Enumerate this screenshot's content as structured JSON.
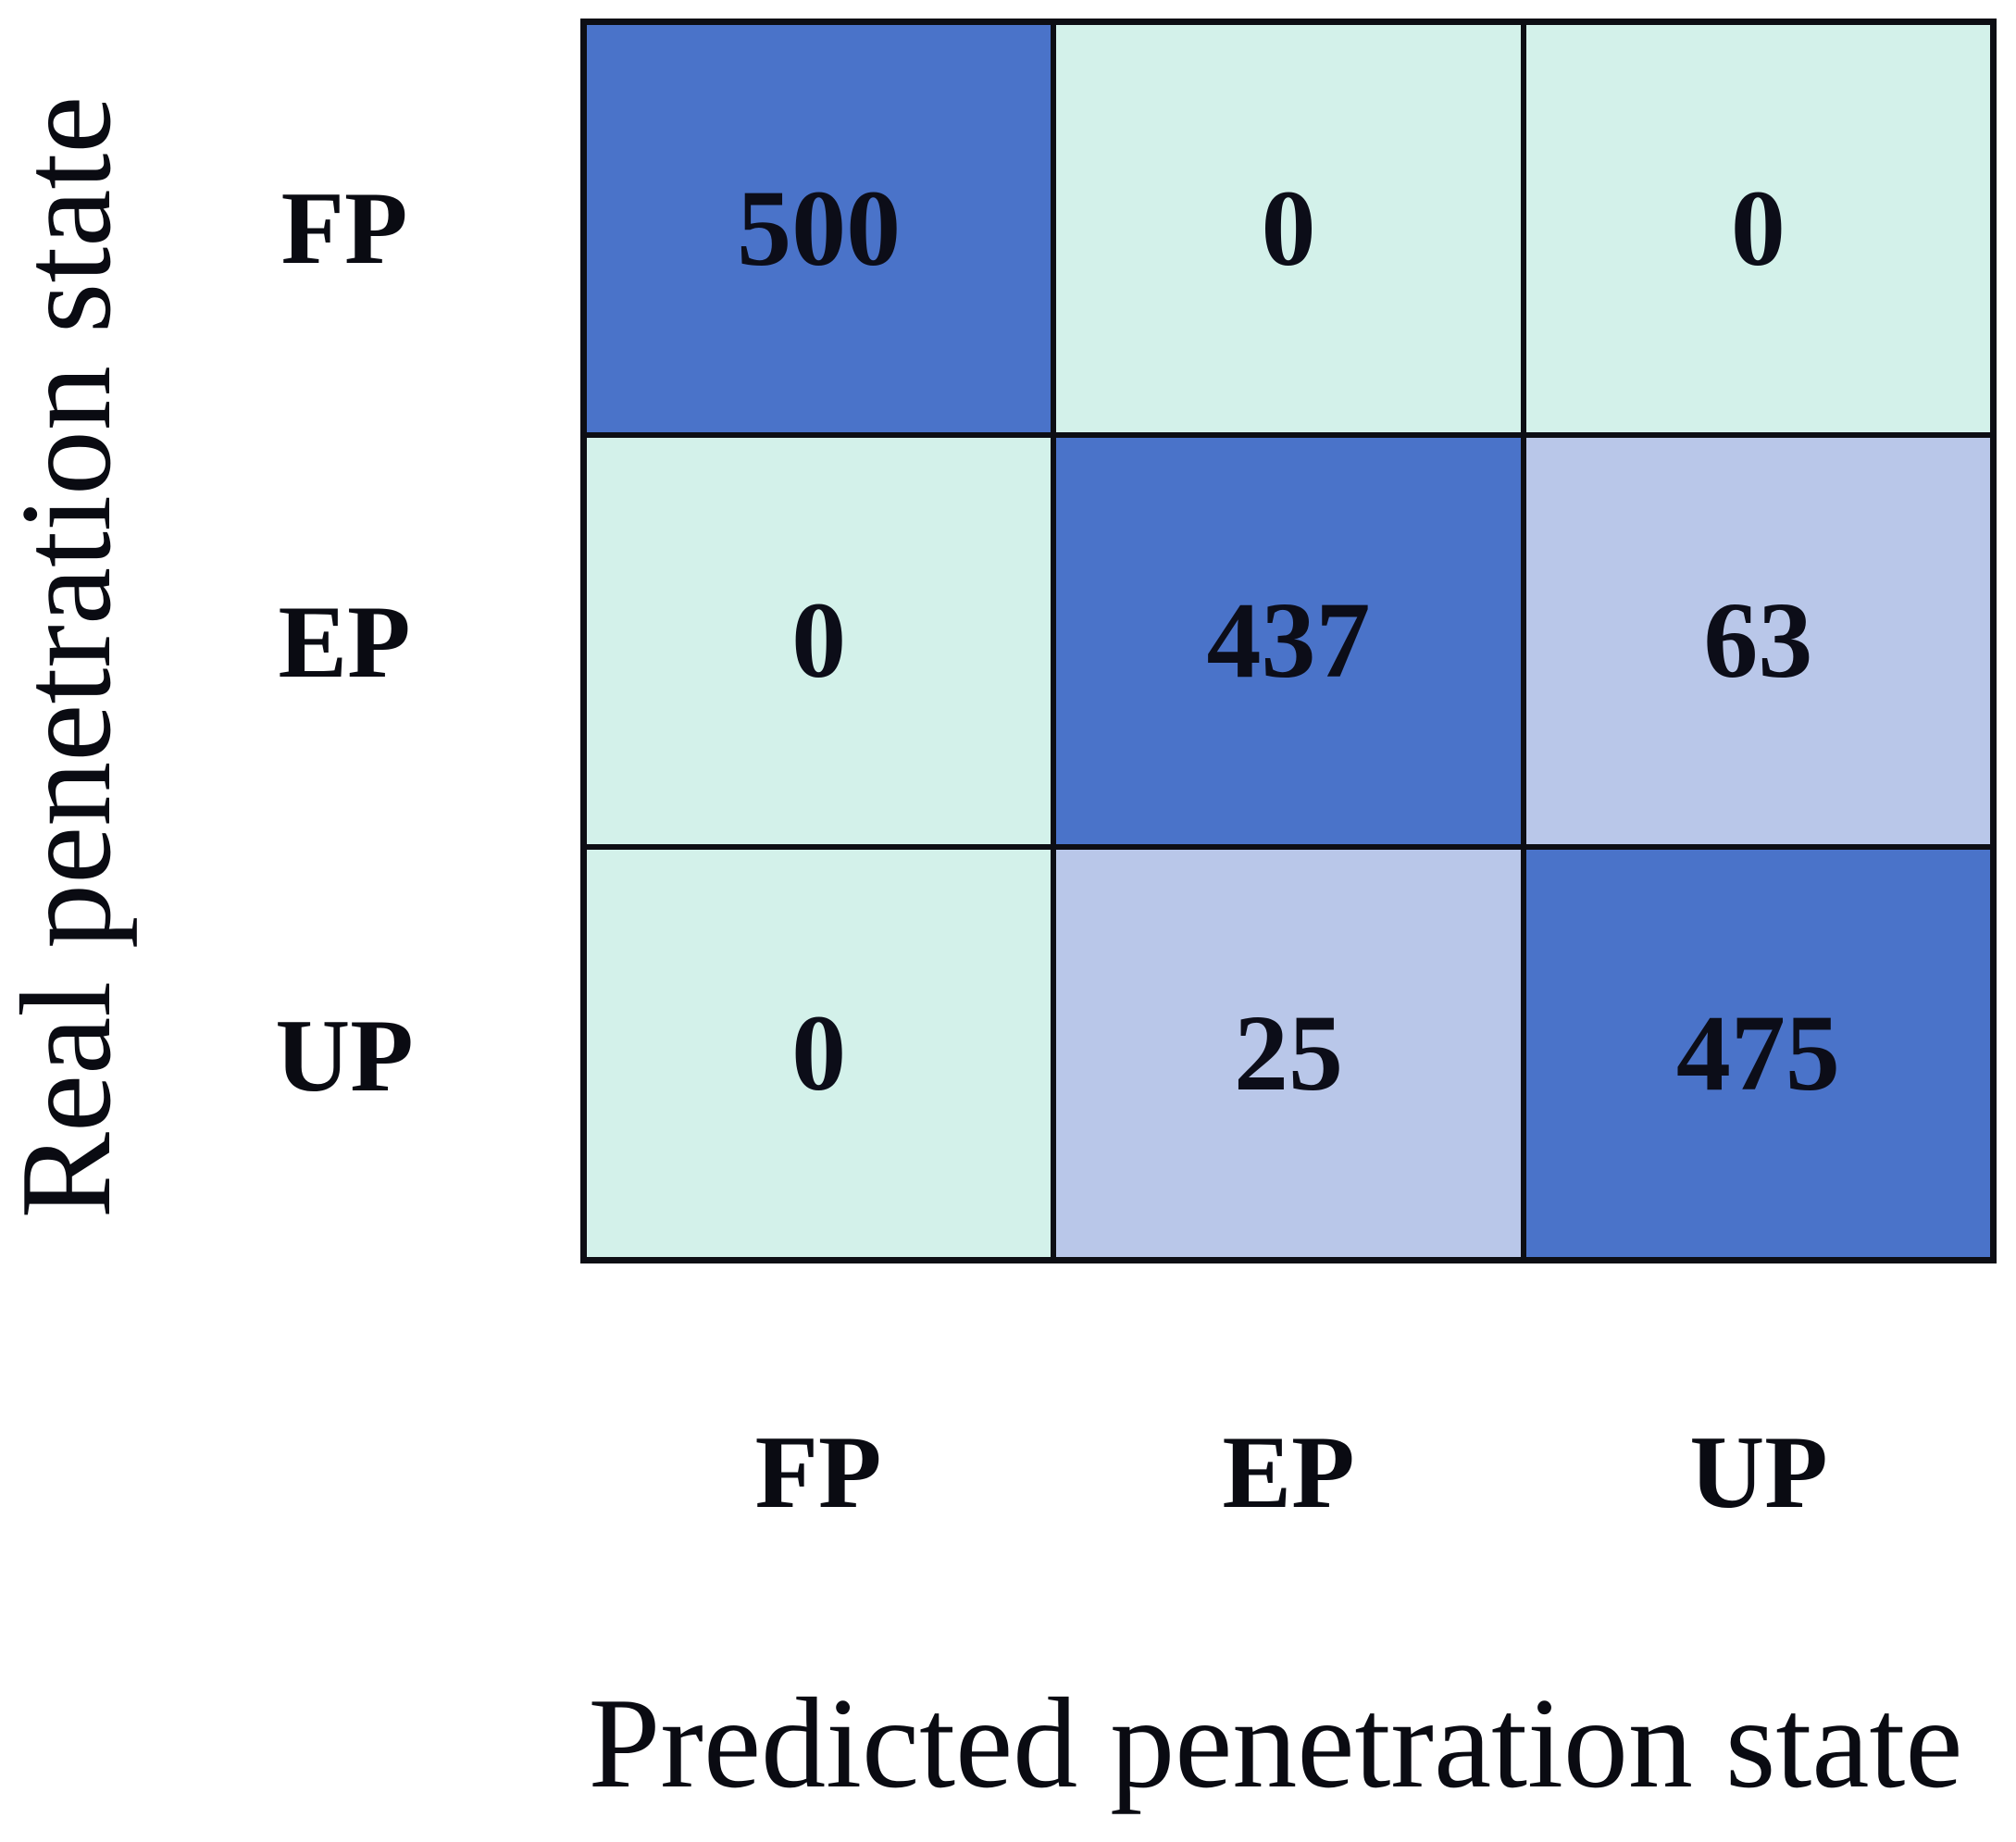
{
  "chart_data": {
    "type": "heatmap",
    "subtype": "confusion-matrix",
    "title": "",
    "xlabel": "Predicted penetration state",
    "ylabel": "Real penetration state",
    "x_categories": [
      "FP",
      "EP",
      "UP"
    ],
    "y_categories": [
      "FP",
      "EP",
      "UP"
    ],
    "matrix": [
      [
        500,
        0,
        0
      ],
      [
        0,
        437,
        63
      ],
      [
        0,
        25,
        475
      ]
    ],
    "cell_colors": [
      [
        "#4a73c9",
        "#d3f1ea",
        "#d3f1ea"
      ],
      [
        "#d3f1ea",
        "#4a73c9",
        "#b9c7e9"
      ],
      [
        "#d3f1ea",
        "#b9c7e9",
        "#4a73c9"
      ]
    ],
    "colors": {
      "diagonal_high": "#4a73c9",
      "zero_low": "#d3f1ea",
      "offdiagonal_mid": "#b9c7e9",
      "grid_line": "#0d0e14",
      "value_text": "#0c0d18"
    },
    "legend": "none",
    "grid": "on"
  }
}
